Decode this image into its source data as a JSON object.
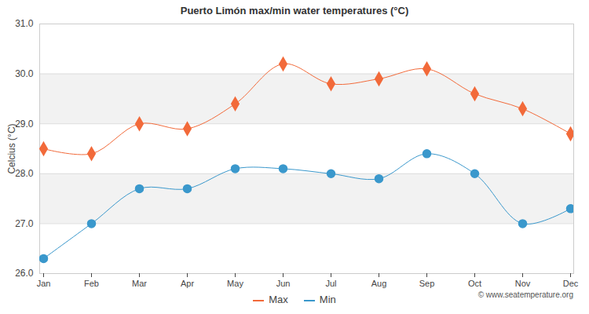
{
  "chart_data": {
    "type": "line",
    "title": "Puerto Limón max/min water temperatures (°C)",
    "y_label": "Celcius (°C)",
    "caption": "© www.seatemperature.org",
    "categories": [
      "Jan",
      "Feb",
      "Mar",
      "Apr",
      "May",
      "Jun",
      "Jul",
      "Aug",
      "Sep",
      "Oct",
      "Nov",
      "Dec"
    ],
    "series": [
      {
        "name": "Max",
        "color": "#f26a3a",
        "marker": "diamond",
        "values": [
          28.5,
          28.4,
          29.0,
          28.9,
          29.4,
          30.2,
          29.8,
          29.9,
          30.1,
          29.6,
          29.3,
          28.8
        ]
      },
      {
        "name": "Min",
        "color": "#3a98cc",
        "marker": "circle",
        "values": [
          26.3,
          27.0,
          27.7,
          27.7,
          28.1,
          28.1,
          28.0,
          27.9,
          28.4,
          28.0,
          27.0,
          27.3
        ]
      }
    ],
    "ylim": [
      26,
      31
    ],
    "yticks": [
      26,
      27,
      28,
      29,
      30,
      31
    ],
    "grid": true,
    "legend": "bottom"
  }
}
